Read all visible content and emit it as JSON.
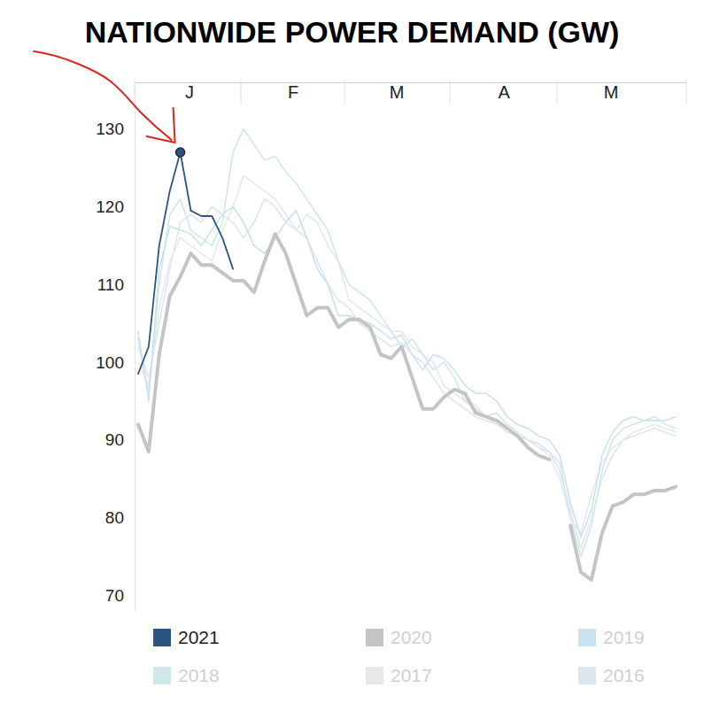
{
  "chart_data": {
    "type": "line",
    "title": "NATIONWIDE POWER DEMAND (GW)",
    "x": [
      1,
      4,
      7,
      10,
      13,
      16,
      19,
      22,
      25,
      28,
      31,
      34,
      37,
      40,
      43,
      46,
      49,
      52,
      55,
      58,
      61,
      64,
      67,
      70,
      73,
      76,
      79,
      82,
      85,
      88,
      91,
      94,
      97,
      100,
      103,
      106,
      109,
      112,
      115,
      118,
      121,
      124,
      127,
      130,
      133,
      136,
      139,
      142,
      145,
      148,
      151,
      154
    ],
    "xlim": [
      0,
      157
    ],
    "xticks": [
      {
        "value": 15.5,
        "label": "J"
      },
      {
        "value": 45,
        "label": "F"
      },
      {
        "value": 74.5,
        "label": "M"
      },
      {
        "value": 105,
        "label": "A"
      },
      {
        "value": 135.5,
        "label": "M"
      }
    ],
    "ylim": [
      68,
      136
    ],
    "yticks": [
      70,
      80,
      90,
      100,
      110,
      120,
      130
    ],
    "grid": false,
    "legend": "bottom",
    "series": [
      {
        "name": "2021",
        "color": "#2b5480",
        "values": [
          98.5,
          102,
          115,
          122,
          127,
          119.5,
          118.8,
          118.8,
          116,
          112,
          null,
          null,
          null,
          null,
          null,
          null,
          null,
          null,
          null,
          null,
          null,
          null,
          null,
          null,
          null,
          null,
          null,
          null,
          null,
          null,
          null,
          null,
          null,
          null,
          null,
          null,
          null,
          null,
          null,
          null,
          null,
          null,
          null,
          null,
          null,
          null,
          null,
          null,
          null,
          null,
          null,
          null
        ]
      },
      {
        "name": "2020",
        "color": "#c4c4c4",
        "values": [
          92,
          88.5,
          101,
          108.5,
          111,
          114,
          112.5,
          112.5,
          111.5,
          110.5,
          110.5,
          109,
          113,
          116.5,
          114,
          110,
          106,
          107,
          107,
          104.5,
          105.5,
          105.5,
          104.5,
          101,
          100.5,
          102,
          98,
          94,
          94,
          95.5,
          96.5,
          96,
          93.5,
          93,
          92.5,
          91.5,
          90.5,
          89,
          88,
          87.5,
          null,
          79,
          73,
          72,
          78,
          81.5,
          82,
          83,
          83,
          83.5,
          83.5,
          84
        ]
      },
      {
        "name": "2019",
        "color": "#c9e2ef",
        "values": [
          104,
          95,
          112,
          117.5,
          117,
          116.5,
          115,
          117,
          119,
          120,
          118,
          115,
          114,
          116,
          118,
          119.5,
          116,
          112,
          110,
          106,
          106,
          105.5,
          105,
          104,
          103,
          103.5,
          101,
          99,
          101,
          100.5,
          99,
          97,
          96,
          96,
          95,
          93,
          92,
          91.5,
          90.5,
          90,
          88,
          82,
          77.5,
          81,
          88,
          91,
          92.5,
          93,
          92.5,
          92.5,
          92.5,
          93
        ]
      },
      {
        "name": "2018",
        "color": "#d0e8e7",
        "values": [
          103,
          96,
          110,
          119,
          121,
          117,
          116,
          115,
          118,
          127,
          130,
          128,
          126,
          126.5,
          124.5,
          123,
          121,
          119,
          117,
          113,
          110,
          109,
          108,
          106,
          104,
          102,
          103,
          101,
          99,
          100,
          98,
          95,
          94,
          93,
          93.5,
          92,
          91,
          90,
          89.5,
          88.5,
          87,
          80,
          75,
          79,
          86,
          90,
          91.5,
          92,
          92.5,
          93,
          92,
          91.5
        ]
      },
      {
        "name": "2017",
        "color": "#e8e8e8",
        "values": [
          100,
          97,
          107,
          113,
          116,
          115,
          114,
          113,
          117,
          120,
          124,
          123,
          122,
          121,
          119,
          117,
          119,
          118,
          115,
          113,
          108,
          107,
          106,
          105,
          104,
          104,
          102,
          101,
          100,
          97,
          96,
          95,
          94.5,
          93,
          92,
          91,
          90.5,
          90,
          89,
          88,
          85,
          80,
          78,
          83,
          87,
          89,
          90,
          91,
          91.5,
          92,
          91.5,
          91
        ]
      },
      {
        "name": "2016",
        "color": "#dde6ee",
        "values": [
          102,
          98,
          105,
          112,
          118,
          119,
          118,
          120,
          119,
          118,
          116,
          118,
          121,
          120,
          118,
          117,
          116,
          113,
          110,
          108,
          107,
          105,
          104,
          103,
          102,
          102.5,
          101,
          100,
          98,
          96,
          95,
          94,
          93,
          92.5,
          92,
          91.5,
          90.5,
          90,
          89,
          88.5,
          86,
          81,
          76,
          80,
          85,
          88,
          90,
          90.5,
          91,
          91.5,
          91,
          90.5
        ]
      }
    ]
  }
}
